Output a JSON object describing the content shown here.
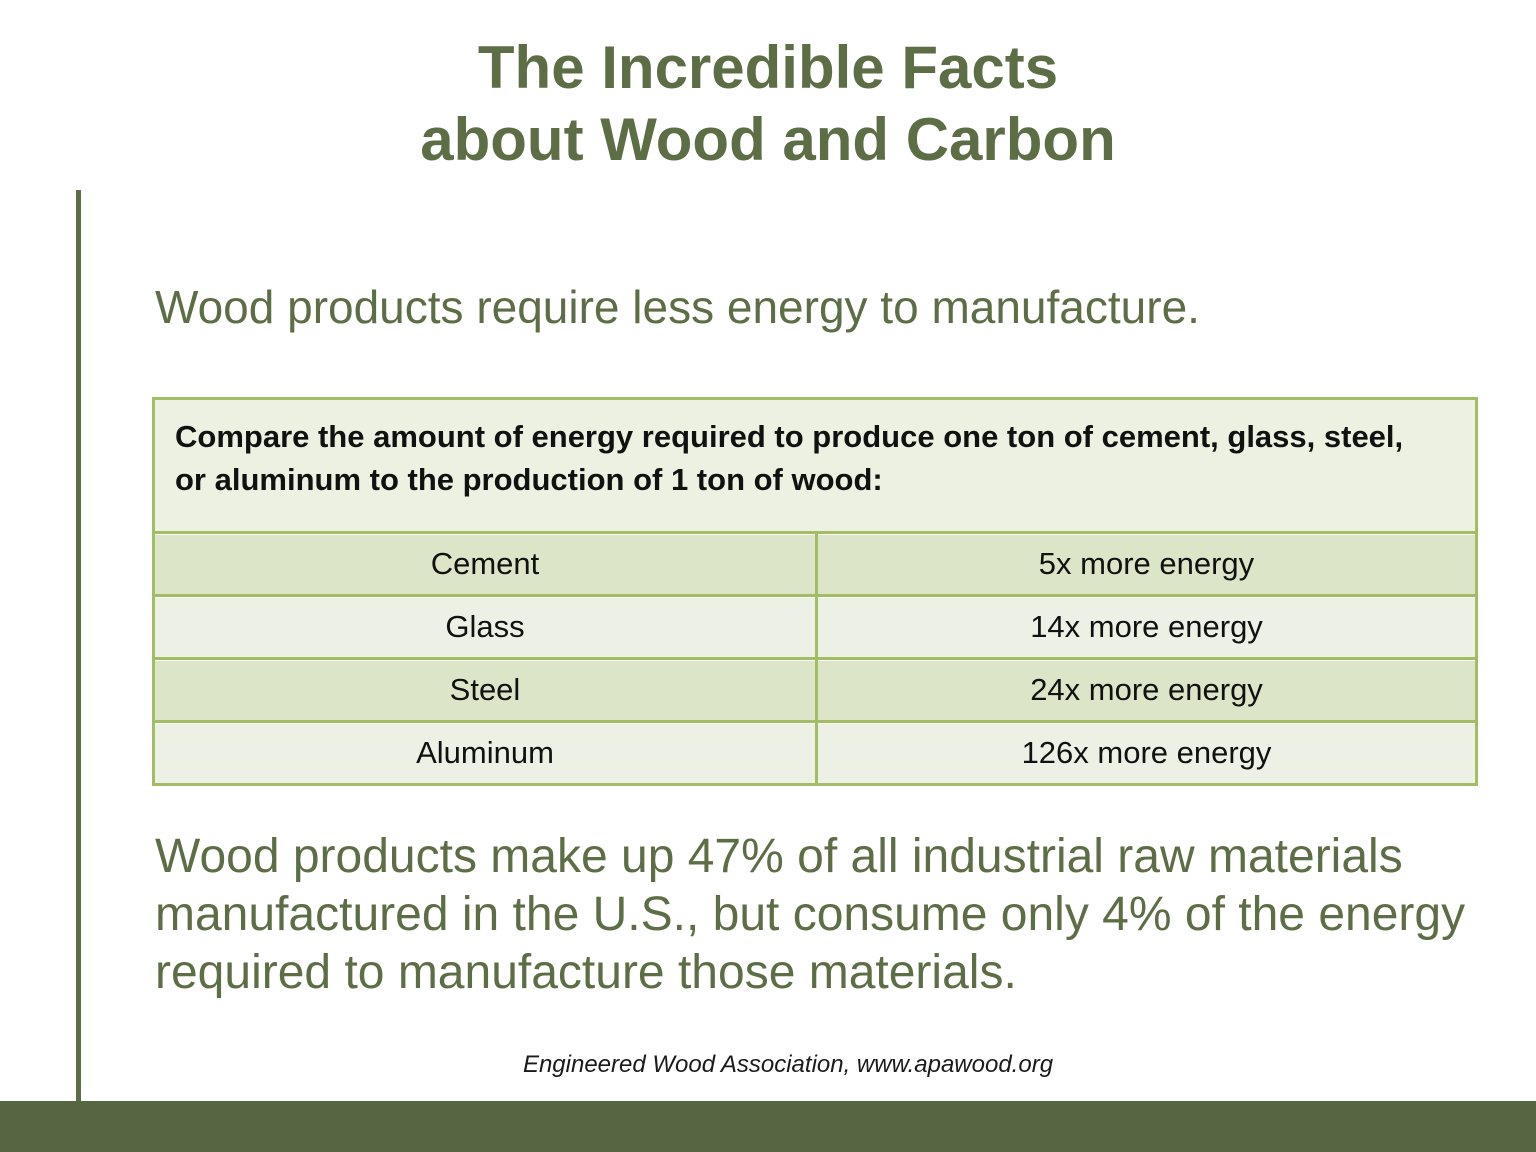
{
  "slide": {
    "title_line1": "The Incredible Facts",
    "title_line2": "about Wood and Carbon",
    "subtitle": "Wood products require less energy to manufacture.",
    "body_paragraph": "Wood products make up 47% of all industrial raw materials manufactured in the U.S., but consume only 4% of the energy required to manufacture those materials.",
    "citation": "Engineered Wood Association, www.apawood.org"
  },
  "table": {
    "caption": "Compare the amount of energy required to produce one ton of cement, glass, steel, or aluminum to the production of 1 ton of wood:",
    "rows": [
      {
        "material": "Cement",
        "energy": "5x more energy"
      },
      {
        "material": "Glass",
        "energy": "14x more energy"
      },
      {
        "material": "Steel",
        "energy": "24x more energy"
      },
      {
        "material": "Aluminum",
        "energy": "126x more energy"
      }
    ]
  },
  "colors": {
    "accent_green_text": "#5d6e47",
    "table_border_green": "#a3bd66",
    "table_row_dark": "#dde5c8",
    "table_row_light": "#edf1e5",
    "table_header_bg": "#edf1e2",
    "footer_bar_green": "#566642"
  }
}
